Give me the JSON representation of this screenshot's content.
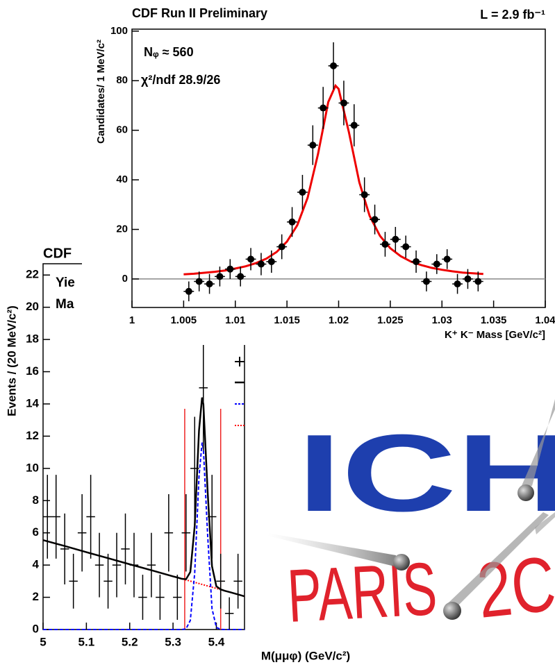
{
  "chart_data": [
    {
      "type": "errorbar",
      "title": "CDF Run II Preliminary",
      "subtitle": "L = 2.9 fb⁻¹",
      "ylabel": "Candidates/ 1 MeV/c²",
      "xlabel": "K⁺ K⁻ Mass [GeV/c²]",
      "annotations": [
        "Nᵩ ≈ 560",
        "χ²/ndf  28.9/26"
      ],
      "xlim": [
        1,
        1.04
      ],
      "xticks": [
        1,
        1.005,
        1.01,
        1.015,
        1.02,
        1.025,
        1.03,
        1.035,
        1.04
      ],
      "ylim": [
        -11.5,
        100.8
      ],
      "yticks": [
        0,
        20,
        40,
        60,
        80,
        100
      ],
      "zeroline": true,
      "marker": "circle",
      "color": "#000000",
      "points": {
        "xerr": 0.0005,
        "x": [
          1.0055,
          1.0065,
          1.0075,
          1.0085,
          1.0095,
          1.0105,
          1.0115,
          1.0125,
          1.0135,
          1.0145,
          1.0155,
          1.0165,
          1.0175,
          1.0185,
          1.0195,
          1.0205,
          1.0215,
          1.0225,
          1.0235,
          1.0245,
          1.0255,
          1.0265,
          1.0275,
          1.0285,
          1.0295,
          1.0305,
          1.0315,
          1.0325,
          1.0335
        ],
        "values": [
          -5,
          -1,
          -2,
          1,
          4,
          1,
          8,
          6,
          7,
          13,
          23,
          35,
          54,
          69,
          86,
          71,
          62,
          34,
          24,
          14,
          16,
          13,
          7,
          -1,
          6,
          8,
          -2,
          0,
          -1
        ],
        "errors": [
          4,
          4,
          4,
          4,
          4,
          4,
          4.5,
          4.5,
          4.5,
          5,
          6,
          7,
          8,
          8.5,
          9.5,
          9,
          8.5,
          7,
          6,
          5,
          5,
          4.5,
          4.5,
          4,
          4,
          4,
          4,
          4,
          4
        ]
      },
      "curves": [
        {
          "color": "#ee0000",
          "style": "solid",
          "x": [
            1.005,
            1.006,
            1.007,
            1.008,
            1.009,
            1.01,
            1.011,
            1.012,
            1.013,
            1.014,
            1.015,
            1.016,
            1.017,
            1.018,
            1.019,
            1.0197,
            1.02,
            1.021,
            1.022,
            1.023,
            1.024,
            1.025,
            1.026,
            1.027,
            1.028,
            1.029,
            1.03,
            1.031,
            1.032,
            1.033,
            1.034
          ],
          "values": [
            1.9,
            2.1,
            2.5,
            2.9,
            3.4,
            4.2,
            5.1,
            6.4,
            8.2,
            10.9,
            15.1,
            21.7,
            32.8,
            50.4,
            71.4,
            78,
            76.7,
            59.1,
            39,
            25.5,
            17.4,
            12.4,
            9.2,
            7.0,
            5.6,
            4.5,
            3.7,
            3.1,
            2.6,
            2.3,
            2.0
          ]
        }
      ]
    },
    {
      "type": "errorbar",
      "title": "CDF",
      "annotations": [
        "Yie",
        "Ma"
      ],
      "ylabel": "Events / (20 MeV/c²)",
      "xlabel": "M(μμφ) (GeV/c²)",
      "xlim": [
        5,
        5.465
      ],
      "xticks": [
        5,
        5.1,
        5.2,
        5.3,
        5.4
      ],
      "ylim": [
        0,
        22.7
      ],
      "yticks": [
        0,
        2,
        4,
        6,
        8,
        10,
        12,
        14,
        16,
        18,
        20,
        22
      ],
      "marker": "cross",
      "color": "#000000",
      "vlines": [
        5.327,
        5.41
      ],
      "vline_color": "#ee2222",
      "points": {
        "xerr": 0.01,
        "x": [
          5.01,
          5.03,
          5.05,
          5.07,
          5.09,
          5.11,
          5.13,
          5.15,
          5.17,
          5.19,
          5.21,
          5.23,
          5.25,
          5.27,
          5.29,
          5.31,
          5.33,
          5.35,
          5.37,
          5.39,
          5.41,
          5.43,
          5.45
        ],
        "values": [
          7,
          7,
          5,
          3,
          6,
          7,
          4,
          3,
          4,
          5,
          4,
          2,
          4,
          2,
          6,
          2,
          6,
          10,
          15,
          7,
          3,
          1,
          3
        ],
        "errors": [
          2.6,
          2.6,
          2.2,
          1.7,
          2.4,
          2.6,
          2,
          1.7,
          2,
          2.2,
          2,
          1.4,
          2,
          1.4,
          2.4,
          1.4,
          2.4,
          3.2,
          3.9,
          2.6,
          1.7,
          1,
          1.7
        ]
      },
      "curves": [
        {
          "color": "#ff0000",
          "style": "dotted",
          "x": [
            5.0,
            5.05,
            5.1,
            5.15,
            5.2,
            5.25,
            5.3,
            5.35,
            5.4,
            5.45,
            5.465
          ],
          "values": [
            5.55,
            5.18,
            4.8,
            4.43,
            4.05,
            3.68,
            3.3,
            2.93,
            2.55,
            2.18,
            2.06
          ]
        },
        {
          "color": "#0000ff",
          "style": "dashed",
          "x": [
            5.0,
            5.05,
            5.1,
            5.15,
            5.2,
            5.25,
            5.3,
            5.31,
            5.32,
            5.33,
            5.34,
            5.35,
            5.36,
            5.367,
            5.37,
            5.38,
            5.39,
            5.4,
            5.41,
            5.42,
            5.43,
            5.45,
            5.465
          ],
          "values": [
            0,
            0,
            0,
            0,
            0,
            0,
            0,
            0,
            0,
            0.04,
            0.57,
            3.5,
            9.5,
            11.6,
            11.2,
            5.8,
            1.3,
            0.13,
            0.01,
            0,
            0,
            0,
            0
          ]
        },
        {
          "color": "#000000",
          "style": "solid",
          "x": [
            5.0,
            5.05,
            5.1,
            5.15,
            5.2,
            5.25,
            5.3,
            5.31,
            5.32,
            5.33,
            5.34,
            5.35,
            5.36,
            5.367,
            5.37,
            5.38,
            5.39,
            5.4,
            5.41,
            5.42,
            5.43,
            5.45,
            5.465
          ],
          "values": [
            5.55,
            5.18,
            4.8,
            4.43,
            4.05,
            3.68,
            3.3,
            3.23,
            3.15,
            3.12,
            3.57,
            6.43,
            12.35,
            14.4,
            13.98,
            8.5,
            3.93,
            2.68,
            2.49,
            2.4,
            2.33,
            2.18,
            2.06
          ]
        }
      ]
    }
  ],
  "logo": {
    "ich": "ICH",
    "paris": "PARIS",
    "year": "2C"
  }
}
